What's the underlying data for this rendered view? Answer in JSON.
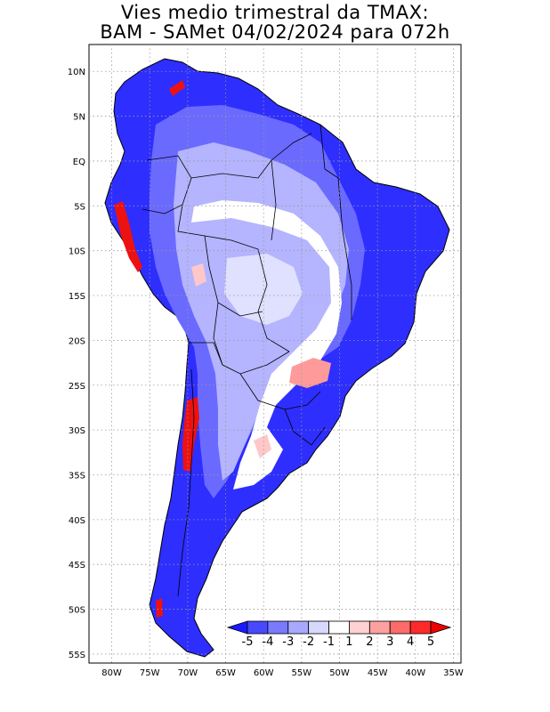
{
  "title_line1": "Vies medio trimestral da TMAX:",
  "title_line2": "BAM - SAMet 04/02/2024  para 072h",
  "map": {
    "lon_labels": [
      "80W",
      "75W",
      "70W",
      "65W",
      "60W",
      "55W",
      "50W",
      "45W",
      "40W",
      "35W"
    ],
    "lat_labels": [
      "10N",
      "5N",
      "EQ",
      "5S",
      "10S",
      "15S",
      "20S",
      "25S",
      "30S",
      "35S",
      "40S",
      "45S",
      "50S",
      "55S"
    ],
    "lon_values": [
      -80,
      -75,
      -70,
      -65,
      -60,
      -55,
      -50,
      -45,
      -40,
      -35
    ],
    "lat_values": [
      10,
      5,
      0,
      -5,
      -10,
      -15,
      -20,
      -25,
      -30,
      -35,
      -40,
      -45,
      -50,
      -55
    ],
    "lon_range": [
      -83,
      -34
    ],
    "lat_range": [
      13,
      -56
    ],
    "grid": true,
    "grid_style": "dotted"
  },
  "colorbar": {
    "labels": [
      "-5",
      "-4",
      "-3",
      "-2",
      "-1",
      "1",
      "2",
      "3",
      "4",
      "5"
    ],
    "colors": [
      "#1a1aff",
      "#4848ff",
      "#7a7aff",
      "#a8a8ff",
      "#d8d8ff",
      "#ffffff",
      "#ffd0d0",
      "#ffa0a0",
      "#ff6a6a",
      "#ff2a2a",
      "#ee0000"
    ]
  },
  "colors": {
    "land_outline": "#000000",
    "strong_cool": "#2e2eff",
    "cool": "#6a6aff",
    "light_cool": "#b4b4ff",
    "pale_cool": "#e0e0ff",
    "warm": "#ff9a9a",
    "hot": "#ee1111"
  }
}
